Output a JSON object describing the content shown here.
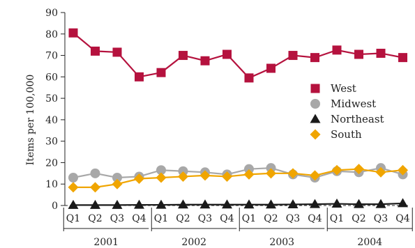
{
  "chart_data": {
    "type": "line",
    "title": "",
    "xlabel": "",
    "ylabel": "Items per 100,000",
    "ylim": [
      0,
      90
    ],
    "yticks": [
      0,
      10,
      20,
      30,
      40,
      50,
      60,
      70,
      80,
      90
    ],
    "categories": [
      "Q1",
      "Q2",
      "Q3",
      "Q4",
      "Q1",
      "Q2",
      "Q3",
      "Q4",
      "Q1",
      "Q2",
      "Q3",
      "Q4",
      "Q1",
      "Q2",
      "Q3",
      "Q4"
    ],
    "groups": [
      {
        "label": "2001",
        "count": 4
      },
      {
        "label": "2002",
        "count": 4
      },
      {
        "label": "2003",
        "count": 4
      },
      {
        "label": "2004",
        "count": 4
      }
    ],
    "grid": false,
    "legend_position": "right",
    "series": [
      {
        "name": "West",
        "marker": "square",
        "color": "#b5123e",
        "values": [
          80.5,
          72,
          71.5,
          60,
          62,
          70,
          67.5,
          70.5,
          59.5,
          64,
          70,
          69,
          72.5,
          70.5,
          71,
          69
        ]
      },
      {
        "name": "Midwest",
        "marker": "circle",
        "color": "#a8a8a8",
        "values": [
          13,
          15,
          13,
          13.5,
          16.5,
          16,
          15.5,
          14.5,
          17,
          17.5,
          14.5,
          13,
          16,
          15.5,
          17.5,
          14.5
        ]
      },
      {
        "name": "Northeast",
        "marker": "triangle",
        "color": "#1a1a1a",
        "values": [
          0.2,
          0.2,
          0.2,
          0.3,
          0.3,
          0.4,
          0.4,
          0.4,
          0.4,
          0.4,
          0.5,
          0.6,
          0.8,
          0.6,
          0.6,
          1.0
        ]
      },
      {
        "name": "South",
        "marker": "diamond",
        "color": "#f0a500",
        "values": [
          8.5,
          8.5,
          10,
          12.5,
          13,
          13.5,
          14,
          13.5,
          14.5,
          15,
          15,
          14,
          16.5,
          17,
          15.5,
          16.5
        ]
      }
    ]
  }
}
